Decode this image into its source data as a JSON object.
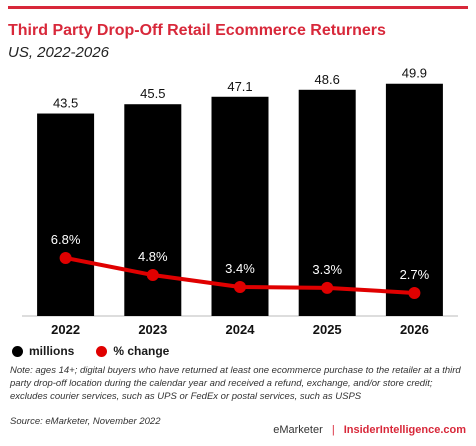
{
  "header": {
    "title": "Third Party Drop-Off Retail Ecommerce Returners",
    "subtitle": "US, 2022-2026"
  },
  "chart_data": {
    "type": "bar",
    "categories": [
      "2022",
      "2023",
      "2024",
      "2025",
      "2026"
    ],
    "series": [
      {
        "name": "millions",
        "kind": "bar",
        "color": "#000000",
        "values": [
          43.5,
          45.5,
          47.1,
          48.6,
          49.9
        ],
        "labels": [
          "43.5",
          "45.5",
          "47.1",
          "48.6",
          "49.9"
        ]
      },
      {
        "name": "% change",
        "kind": "line",
        "color": "#e00000",
        "values": [
          6.8,
          4.8,
          3.4,
          3.3,
          2.7
        ],
        "labels": [
          "6.8%",
          "4.8%",
          "3.4%",
          "3.3%",
          "2.7%"
        ]
      }
    ],
    "ylim": [
      0,
      55
    ],
    "y2lim": [
      0,
      30
    ],
    "legend_position": "bottom-left"
  },
  "legend": {
    "items": [
      "millions",
      "% change"
    ]
  },
  "footer": {
    "note": "Note: ages 14+; digital buyers who have returned at least one ecommerce purchase to the retailer at a third party drop-off location during the calendar year and received a refund, exchange, and/or store credit; excludes courier services, such as UPS or FedEx or postal services, such as USPS",
    "source": "Source: eMarketer, November 2022",
    "brand_left": "eMarketer",
    "brand_sep": "|",
    "brand_right": "InsiderIntelligence.com"
  }
}
